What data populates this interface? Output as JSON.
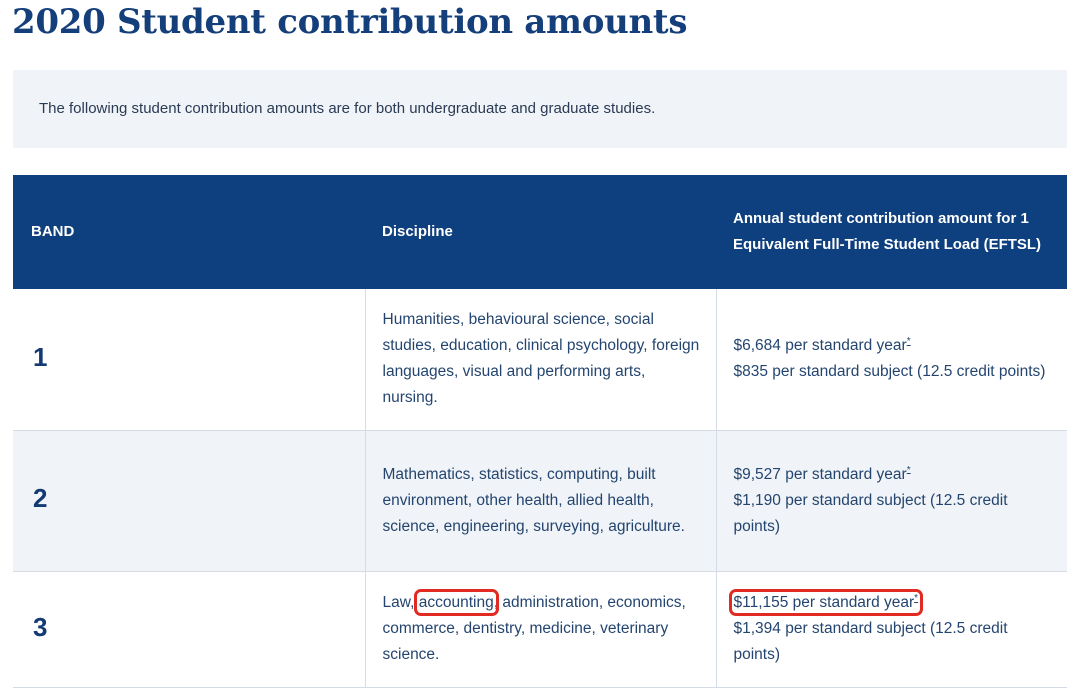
{
  "page_title": "2020 Student contribution amounts",
  "intro_text": "The following student contribution amounts are for both undergraduate and graduate studies.",
  "table": {
    "headers": {
      "band": "BAND",
      "discipline": "Discipline",
      "amount": "Annual student contribution amount for 1 Equivalent Full-Time Student Load (EFTSL)"
    },
    "rows": [
      {
        "band": "1",
        "discipline": "Humanities, behavioural science, social studies, education, clinical psychology, foreign languages, visual and performing arts, nursing.",
        "year_amount": "$6,684 per standard year",
        "subject_amount": "$835 per standard subject (12.5 credit points)"
      },
      {
        "band": "2",
        "discipline": "Mathematics, statistics, computing, built environment, other health, allied health, science, engineering, surveying, agriculture.",
        "year_amount": "$9,527 per standard year",
        "subject_amount": "$1,190 per standard subject (12.5 credit points)"
      },
      {
        "band": "3",
        "discipline_prefix": "Law",
        "discipline_sep1": ",",
        "discipline_highlight": "accounting",
        "discipline_sep2": ",",
        "discipline_rest": "administration, economics, commerce, dentistry, medicine, veterinary science.",
        "year_amount": "$11,155 per standard year",
        "subject_amount": "$1,394 per standard subject (12.5 credit points)"
      }
    ],
    "footnote_marker": "*"
  },
  "colors": {
    "header_bg": "#0e3f7e",
    "title": "#153f7b",
    "highlight_box": "#e12b22",
    "stripe_bg": "#f0f3f7"
  }
}
